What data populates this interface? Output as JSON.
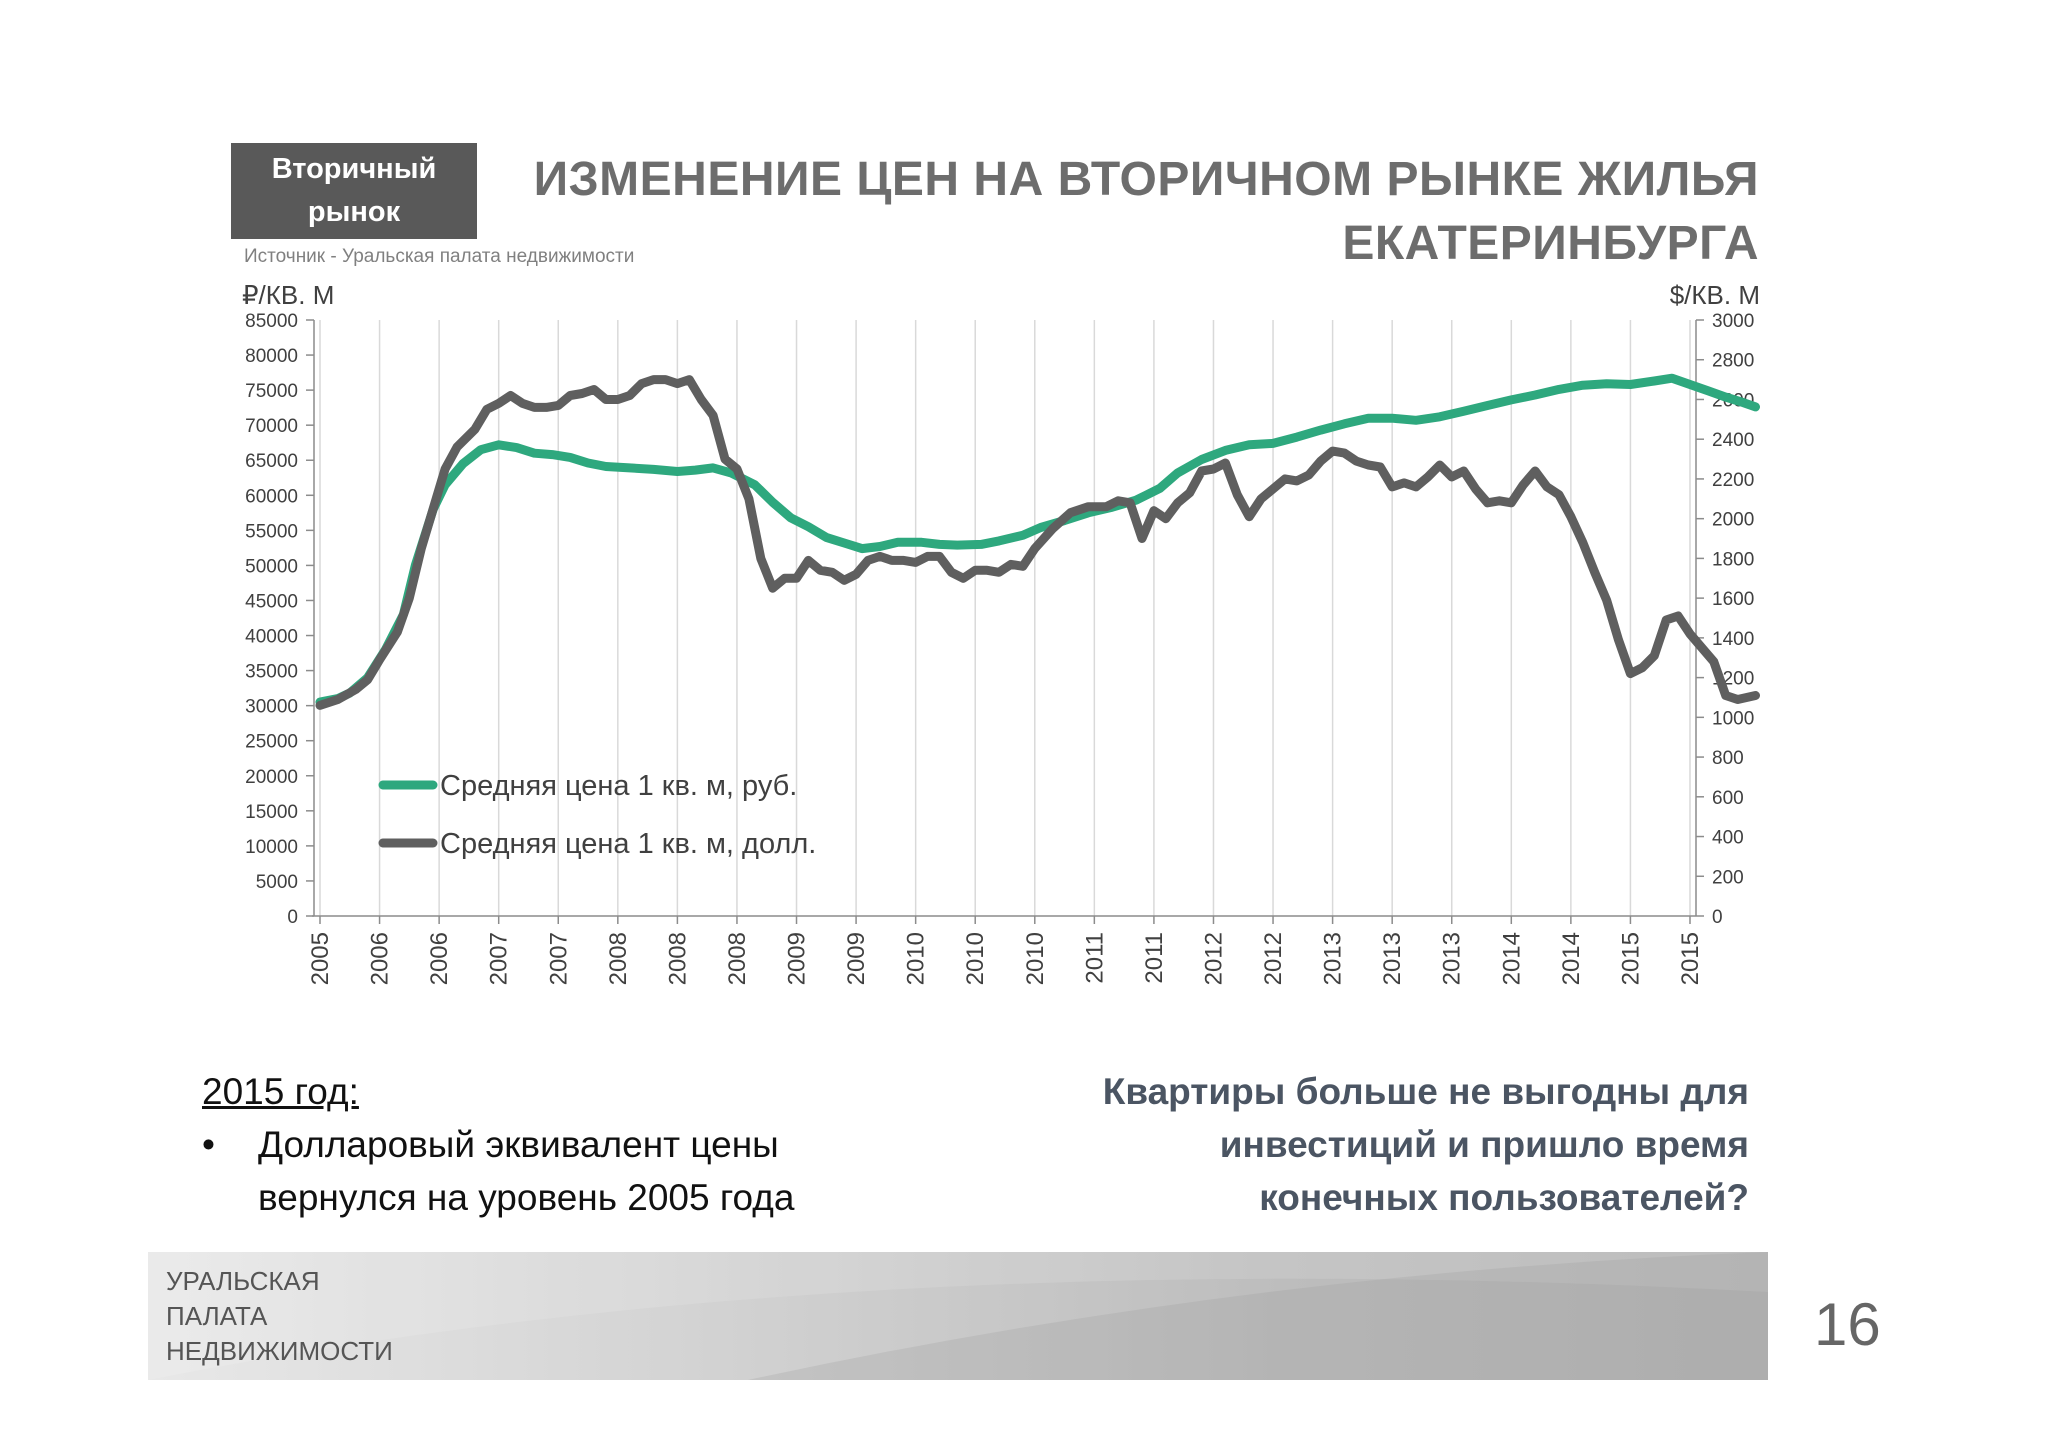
{
  "badge": {
    "line1": "Вторичный",
    "line2": "рынок"
  },
  "source": "Источник - Уральская палата недвижимости",
  "title": {
    "line1": "ИЗМЕНЕНИЕ ЦЕН НА ВТОРИЧНОМ РЫНКЕ ЖИЛЬЯ",
    "line2": "ЕКАТЕРИНБУРГА"
  },
  "axis_units": {
    "left": "₽/КВ. М",
    "right": "$/КВ. М"
  },
  "colors": {
    "rub": "#2ea87e",
    "usd": "#5f5f5f",
    "grid": "#d9d9d9",
    "badge": "#595959"
  },
  "chart_data": {
    "type": "line",
    "x_labels": [
      "2005",
      "2006",
      "2006",
      "2007",
      "2007",
      "2008",
      "2008",
      "2008",
      "2009",
      "2009",
      "2010",
      "2010",
      "2010",
      "2011",
      "2011",
      "2012",
      "2012",
      "2013",
      "2013",
      "2013",
      "2014",
      "2014",
      "2015",
      "2015"
    ],
    "left_axis": {
      "unit": "₽/КВ. М",
      "range": [
        0,
        85000
      ],
      "ticks": [
        "0",
        "5000",
        "10000",
        "15000",
        "20000",
        "25000",
        "30000",
        "35000",
        "40000",
        "45000",
        "50000",
        "55000",
        "60000",
        "65000",
        "70000",
        "75000",
        "80000",
        "85000"
      ]
    },
    "right_axis": {
      "unit": "$/КВ. М",
      "range": [
        0,
        3000
      ],
      "ticks": [
        "0",
        "200",
        "400",
        "600",
        "800",
        "1000",
        "1200",
        "1400",
        "1600",
        "1800",
        "2000",
        "2200",
        "2400",
        "2600",
        "2800",
        "3000"
      ]
    },
    "grid": "vertical",
    "legend_position": "bottom-left",
    "series": [
      {
        "name": "Средняя цена 1 кв. м, руб.",
        "axis": "left",
        "points": [
          [
            0,
            30500
          ],
          [
            0.3,
            31000
          ],
          [
            0.5,
            31800
          ],
          [
            0.8,
            34000
          ],
          [
            1.1,
            38000
          ],
          [
            1.4,
            43000
          ],
          [
            1.6,
            50000
          ],
          [
            1.9,
            58000
          ],
          [
            2.1,
            61500
          ],
          [
            2.4,
            64500
          ],
          [
            2.7,
            66500
          ],
          [
            3.0,
            67200
          ],
          [
            3.3,
            66800
          ],
          [
            3.6,
            66000
          ],
          [
            3.9,
            65800
          ],
          [
            4.2,
            65400
          ],
          [
            4.5,
            64600
          ],
          [
            4.8,
            64100
          ],
          [
            5.2,
            63900
          ],
          [
            5.6,
            63700
          ],
          [
            6.0,
            63400
          ],
          [
            6.3,
            63600
          ],
          [
            6.6,
            63900
          ],
          [
            6.9,
            63200
          ],
          [
            7.3,
            61500
          ],
          [
            7.6,
            59000
          ],
          [
            7.9,
            56800
          ],
          [
            8.2,
            55500
          ],
          [
            8.5,
            54000
          ],
          [
            8.8,
            53200
          ],
          [
            9.1,
            52400
          ],
          [
            9.4,
            52700
          ],
          [
            9.7,
            53300
          ],
          [
            10.1,
            53300
          ],
          [
            10.4,
            53000
          ],
          [
            10.7,
            52900
          ],
          [
            11.1,
            53000
          ],
          [
            11.4,
            53500
          ],
          [
            11.8,
            54300
          ],
          [
            12.1,
            55400
          ],
          [
            12.5,
            56400
          ],
          [
            12.9,
            57500
          ],
          [
            13.3,
            58300
          ],
          [
            13.7,
            59300
          ],
          [
            14.1,
            61000
          ],
          [
            14.4,
            63200
          ],
          [
            14.8,
            65100
          ],
          [
            15.2,
            66400
          ],
          [
            15.6,
            67200
          ],
          [
            16.0,
            67400
          ],
          [
            16.4,
            68300
          ],
          [
            16.8,
            69300
          ],
          [
            17.2,
            70200
          ],
          [
            17.6,
            71000
          ],
          [
            18.0,
            71000
          ],
          [
            18.4,
            70700
          ],
          [
            18.8,
            71200
          ],
          [
            19.2,
            72000
          ],
          [
            19.6,
            72800
          ],
          [
            20.0,
            73600
          ],
          [
            20.4,
            74300
          ],
          [
            20.8,
            75100
          ],
          [
            21.2,
            75700
          ],
          [
            21.6,
            75900
          ],
          [
            22.0,
            75800
          ],
          [
            22.4,
            76300
          ],
          [
            22.7,
            76700
          ],
          [
            23.0,
            75800
          ],
          [
            23.3,
            74900
          ],
          [
            23.6,
            74000
          ],
          [
            23.9,
            73200
          ],
          [
            24.1,
            72600
          ]
        ]
      },
      {
        "name": "Средняя цена 1 кв. м, долл.",
        "axis": "right",
        "points": [
          [
            0,
            1060
          ],
          [
            0.3,
            1090
          ],
          [
            0.6,
            1140
          ],
          [
            0.8,
            1190
          ],
          [
            1.0,
            1290
          ],
          [
            1.3,
            1430
          ],
          [
            1.5,
            1600
          ],
          [
            1.7,
            1850
          ],
          [
            1.9,
            2050
          ],
          [
            2.1,
            2250
          ],
          [
            2.3,
            2360
          ],
          [
            2.6,
            2450
          ],
          [
            2.8,
            2550
          ],
          [
            3.0,
            2580
          ],
          [
            3.2,
            2620
          ],
          [
            3.4,
            2580
          ],
          [
            3.6,
            2560
          ],
          [
            3.8,
            2560
          ],
          [
            4.0,
            2570
          ],
          [
            4.2,
            2620
          ],
          [
            4.4,
            2630
          ],
          [
            4.6,
            2650
          ],
          [
            4.8,
            2600
          ],
          [
            5.0,
            2600
          ],
          [
            5.2,
            2620
          ],
          [
            5.4,
            2680
          ],
          [
            5.6,
            2700
          ],
          [
            5.8,
            2700
          ],
          [
            6.0,
            2680
          ],
          [
            6.2,
            2700
          ],
          [
            6.4,
            2600
          ],
          [
            6.6,
            2520
          ],
          [
            6.8,
            2300
          ],
          [
            7.0,
            2250
          ],
          [
            7.2,
            2100
          ],
          [
            7.4,
            1800
          ],
          [
            7.6,
            1650
          ],
          [
            7.8,
            1700
          ],
          [
            8.0,
            1700
          ],
          [
            8.2,
            1790
          ],
          [
            8.4,
            1740
          ],
          [
            8.6,
            1730
          ],
          [
            8.8,
            1690
          ],
          [
            9.0,
            1720
          ],
          [
            9.2,
            1790
          ],
          [
            9.4,
            1810
          ],
          [
            9.6,
            1790
          ],
          [
            9.8,
            1790
          ],
          [
            10.0,
            1780
          ],
          [
            10.2,
            1810
          ],
          [
            10.4,
            1810
          ],
          [
            10.6,
            1730
          ],
          [
            10.8,
            1700
          ],
          [
            11.0,
            1740
          ],
          [
            11.2,
            1740
          ],
          [
            11.4,
            1730
          ],
          [
            11.6,
            1770
          ],
          [
            11.8,
            1760
          ],
          [
            12.0,
            1850
          ],
          [
            12.3,
            1950
          ],
          [
            12.6,
            2030
          ],
          [
            12.9,
            2060
          ],
          [
            13.2,
            2060
          ],
          [
            13.4,
            2090
          ],
          [
            13.6,
            2080
          ],
          [
            13.8,
            1900
          ],
          [
            14.0,
            2040
          ],
          [
            14.2,
            2000
          ],
          [
            14.4,
            2080
          ],
          [
            14.6,
            2130
          ],
          [
            14.8,
            2240
          ],
          [
            15.0,
            2250
          ],
          [
            15.2,
            2280
          ],
          [
            15.4,
            2120
          ],
          [
            15.6,
            2010
          ],
          [
            15.8,
            2100
          ],
          [
            16.0,
            2150
          ],
          [
            16.2,
            2200
          ],
          [
            16.4,
            2190
          ],
          [
            16.6,
            2220
          ],
          [
            16.8,
            2290
          ],
          [
            17.0,
            2340
          ],
          [
            17.2,
            2330
          ],
          [
            17.4,
            2290
          ],
          [
            17.6,
            2270
          ],
          [
            17.8,
            2260
          ],
          [
            18.0,
            2160
          ],
          [
            18.2,
            2180
          ],
          [
            18.4,
            2160
          ],
          [
            18.6,
            2210
          ],
          [
            18.8,
            2270
          ],
          [
            19.0,
            2210
          ],
          [
            19.2,
            2240
          ],
          [
            19.4,
            2150
          ],
          [
            19.6,
            2080
          ],
          [
            19.8,
            2090
          ],
          [
            20.0,
            2080
          ],
          [
            20.2,
            2170
          ],
          [
            20.4,
            2240
          ],
          [
            20.6,
            2160
          ],
          [
            20.8,
            2120
          ],
          [
            21.0,
            2010
          ],
          [
            21.2,
            1880
          ],
          [
            21.4,
            1730
          ],
          [
            21.6,
            1590
          ],
          [
            21.8,
            1390
          ],
          [
            22.0,
            1220
          ],
          [
            22.2,
            1250
          ],
          [
            22.4,
            1310
          ],
          [
            22.6,
            1490
          ],
          [
            22.8,
            1510
          ],
          [
            23.0,
            1420
          ],
          [
            23.2,
            1350
          ],
          [
            23.4,
            1280
          ],
          [
            23.6,
            1110
          ],
          [
            23.8,
            1090
          ],
          [
            24.1,
            1110
          ]
        ]
      }
    ]
  },
  "bottom_left": {
    "heading": "2015 год:",
    "bullet": "•",
    "line1": "Долларовый эквивалент цены",
    "line2": "вернулся на уровень 2005 года"
  },
  "bottom_right": {
    "line1": "Квартиры больше не выгодны для",
    "line2": "инвестиций и пришло время",
    "line3": "конечных пользователей?"
  },
  "footer": {
    "line1": "УРАЛЬСКАЯ",
    "line2": "ПАЛАТА",
    "line3": "НЕДВИЖИМОСТИ"
  },
  "page_number": "16"
}
